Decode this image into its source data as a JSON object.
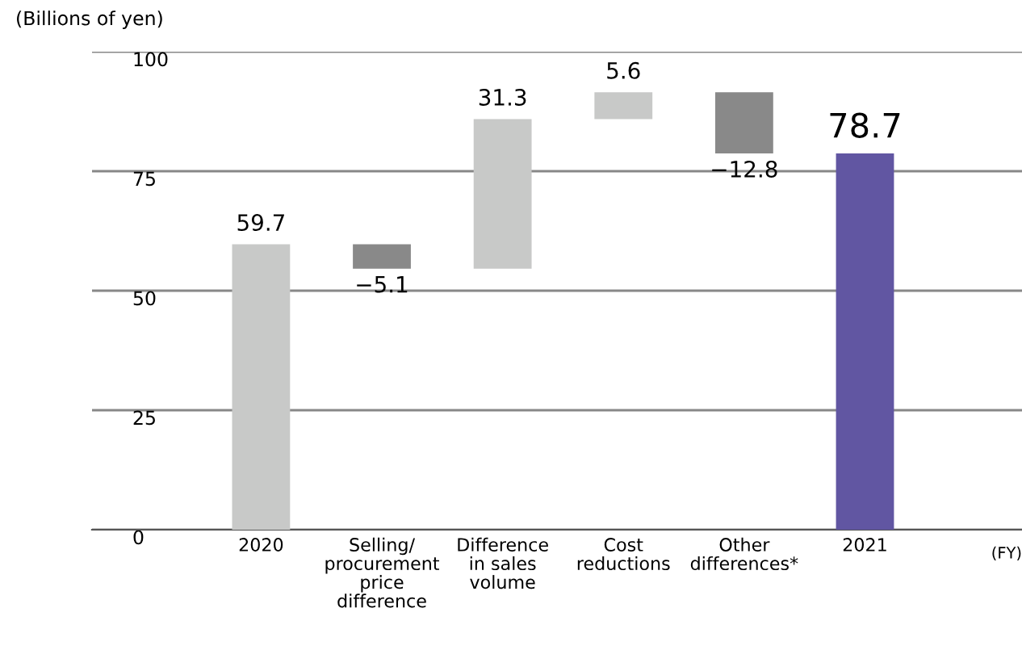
{
  "chart_data": {
    "type": "bar",
    "ylabel": "(Billions of yen)",
    "categories": [
      "2020",
      "Selling/\nprocurement\nprice\ndifference",
      "Difference\nin sales\nvolume",
      "Cost\nreductions",
      "Other\ndifferences*",
      "2021"
    ],
    "values": [
      59.7,
      -5.1,
      31.3,
      5.6,
      -12.8,
      78.7
    ],
    "base": [
      0,
      59.7,
      54.6,
      85.9,
      91.5,
      0
    ],
    "colors": [
      "#c8c9c8",
      "#898989",
      "#c8c9c8",
      "#c8c9c8",
      "#898989",
      "#6156a2"
    ],
    "data_labels": true,
    "ylim": [
      0,
      100
    ],
    "yticks": [
      0,
      25,
      50,
      75,
      100
    ],
    "grid": "y",
    "annotations": [
      "(FY)"
    ]
  }
}
